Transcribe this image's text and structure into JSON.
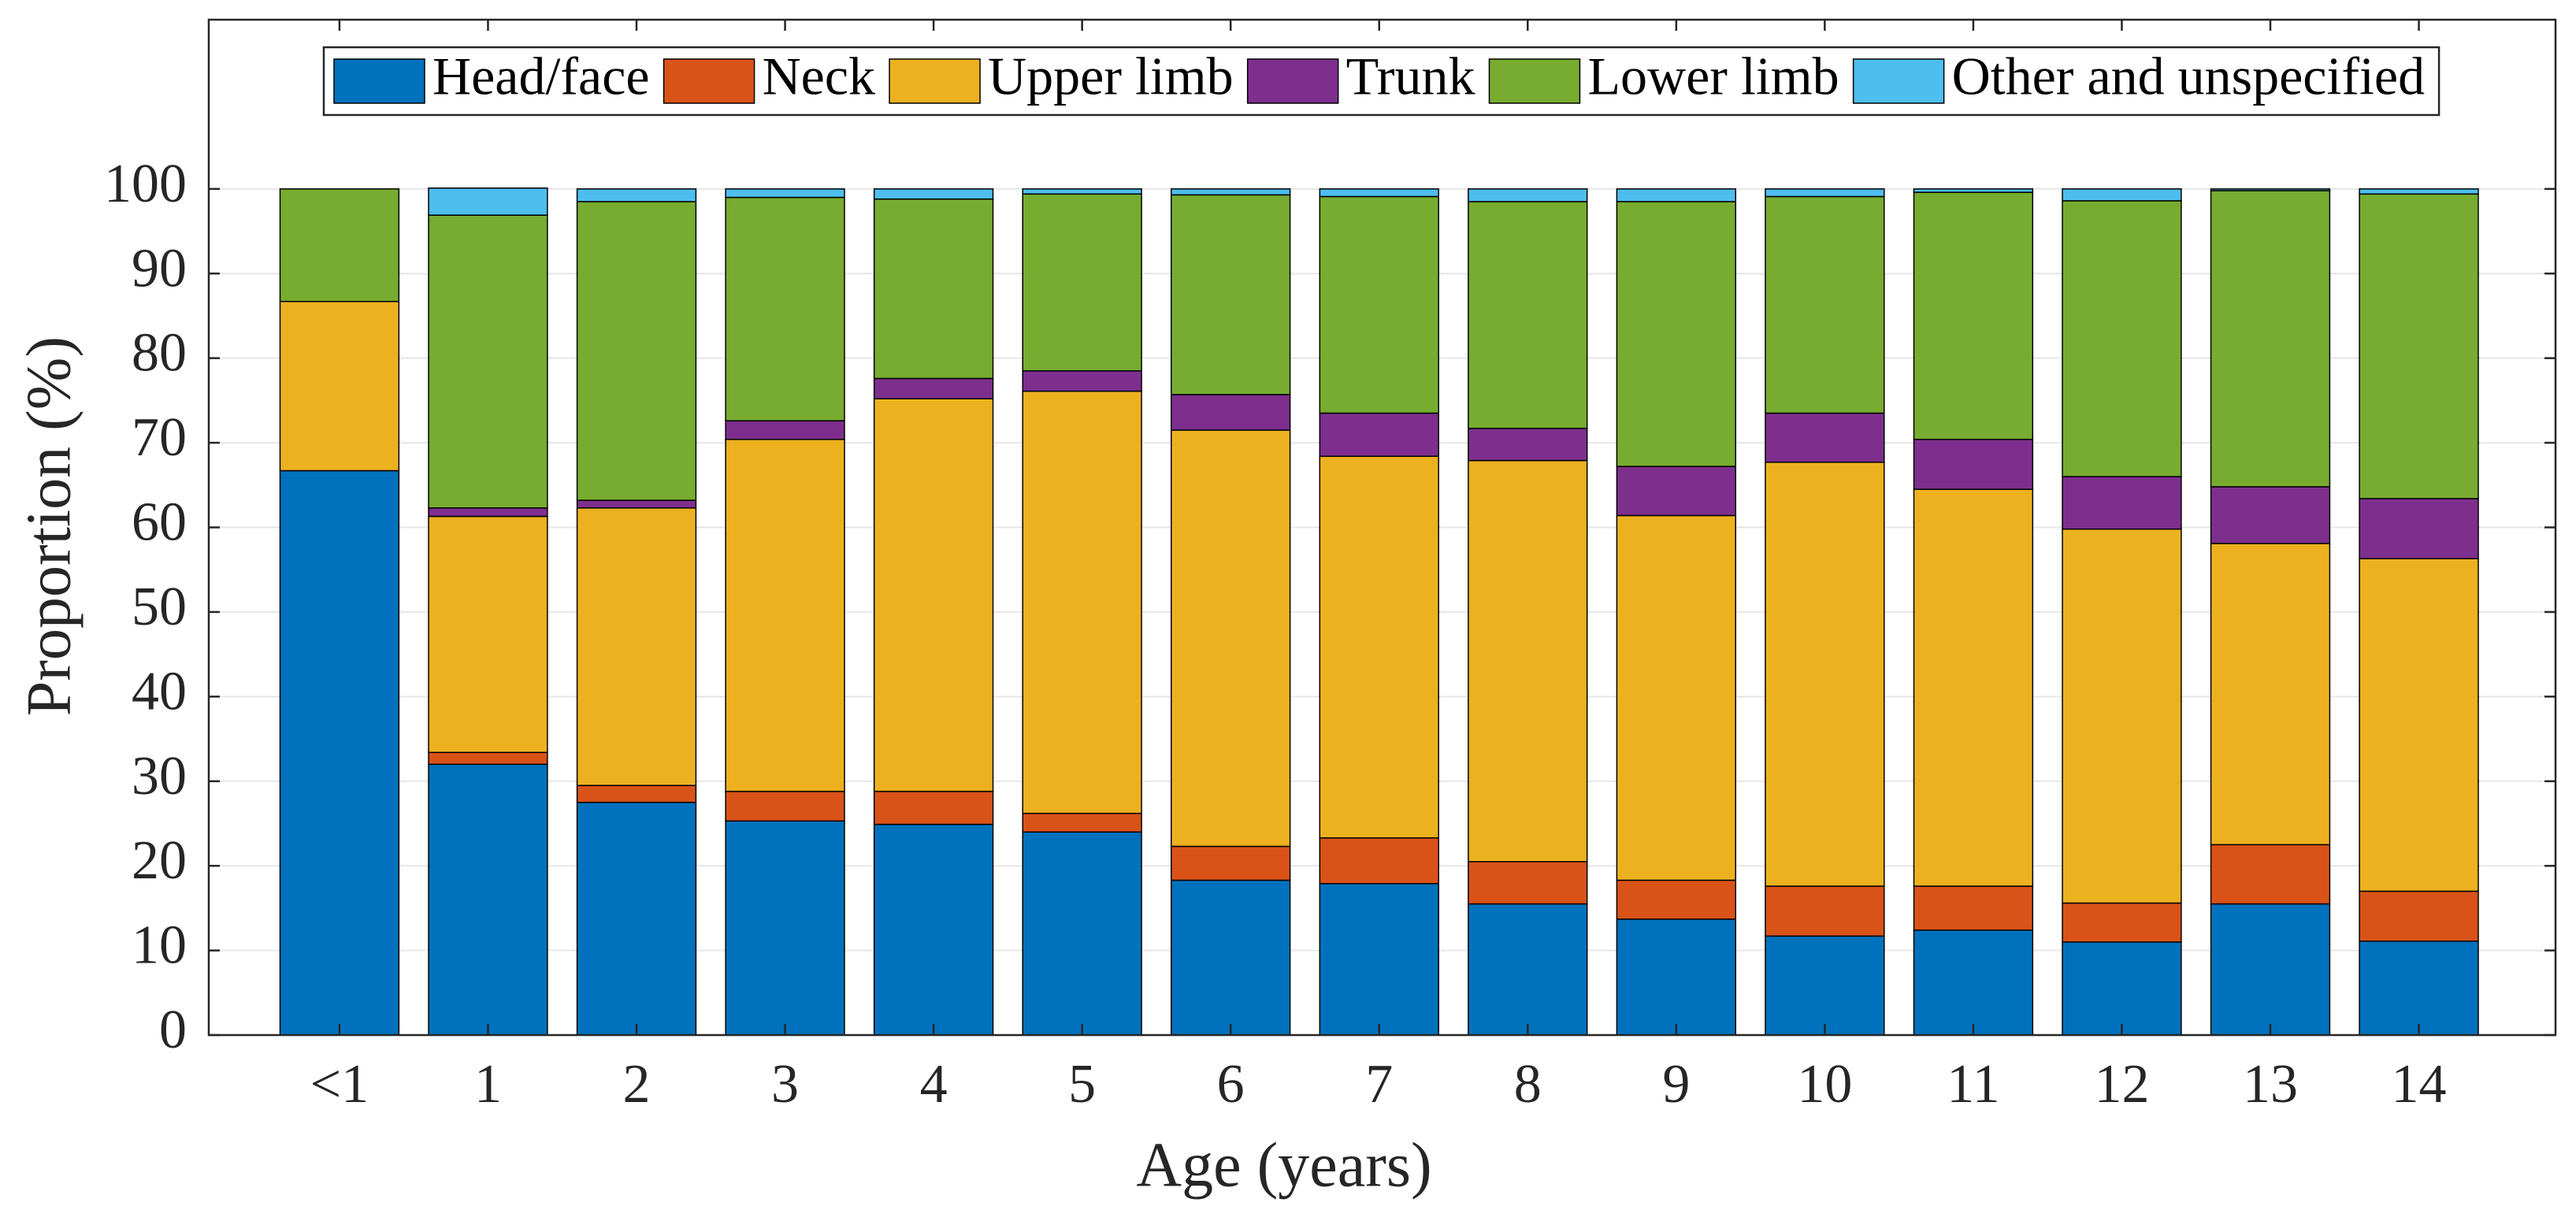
{
  "chart_data": {
    "type": "stacked_bar",
    "xlabel": "Age (years)",
    "ylabel": "Proportion (%)",
    "categories": [
      "<1",
      "1",
      "2",
      "3",
      "4",
      "5",
      "6",
      "7",
      "8",
      "9",
      "10",
      "11",
      "12",
      "13",
      "14"
    ],
    "series": [
      {
        "name": "Head/face",
        "color": "#0072bd",
        "values": [
          66.7,
          32.0,
          27.5,
          25.3,
          24.9,
          24.0,
          18.3,
          17.9,
          15.5,
          13.7,
          11.7,
          12.4,
          11.0,
          15.5,
          11.1
        ]
      },
      {
        "name": "Neck",
        "color": "#d95319",
        "values": [
          0,
          1.4,
          2.0,
          3.5,
          3.9,
          2.2,
          4.0,
          5.4,
          5.0,
          4.6,
          5.9,
          5.2,
          4.6,
          7.0,
          5.9
        ]
      },
      {
        "name": "Upper limb",
        "color": "#edb120",
        "values": [
          20.0,
          27.9,
          32.8,
          41.6,
          46.4,
          49.9,
          49.2,
          45.1,
          47.4,
          43.1,
          50.1,
          46.9,
          44.2,
          35.6,
          39.3
        ]
      },
      {
        "name": "Trunk",
        "color": "#7e2f8e",
        "values": [
          0,
          1.0,
          0.9,
          2.2,
          2.4,
          2.4,
          4.2,
          5.1,
          3.8,
          5.8,
          5.8,
          5.9,
          6.2,
          6.7,
          7.1
        ]
      },
      {
        "name": "Lower limb",
        "color": "#77ac30",
        "values": [
          13.3,
          34.6,
          35.3,
          26.4,
          21.2,
          20.9,
          23.6,
          25.6,
          26.8,
          31.3,
          25.6,
          29.2,
          32.6,
          35.0,
          36.0
        ]
      },
      {
        "name": "Other and unspecified",
        "color": "#4dbeee",
        "values": [
          0,
          3.2,
          1.5,
          1.0,
          1.2,
          0.6,
          0.7,
          0.9,
          1.5,
          1.5,
          0.9,
          0.4,
          1.4,
          0.2,
          0.6
        ]
      }
    ],
    "ylim": [
      0,
      120
    ],
    "yticks": [
      0,
      10,
      20,
      30,
      40,
      50,
      60,
      70,
      80,
      90,
      100
    ],
    "grid": true,
    "legend": "top"
  }
}
